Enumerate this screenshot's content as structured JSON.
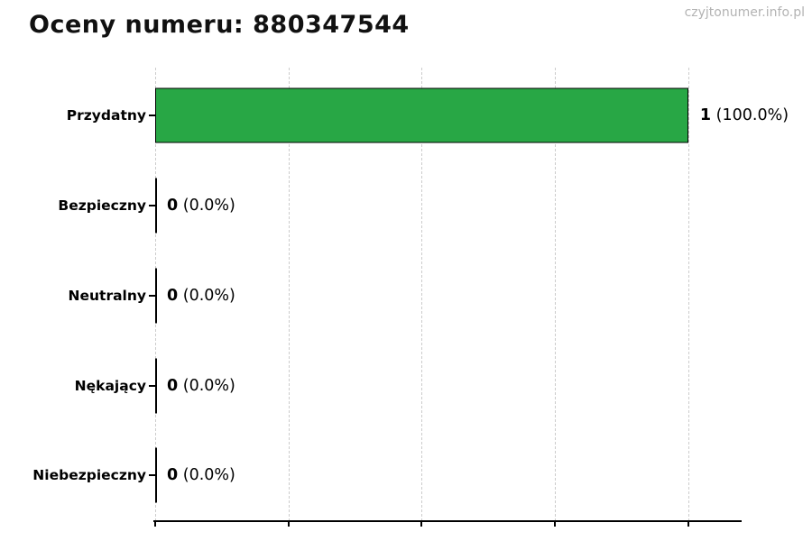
{
  "title": "Oceny numeru: 880347544",
  "watermark": "czyjtonumer.info.pl",
  "chart_data": {
    "type": "bar",
    "orientation": "horizontal",
    "title": "Oceny numeru: 880347544",
    "categories": [
      "Przydatny",
      "Bezpieczny",
      "Neutralny",
      "Nękający",
      "Niebezpieczny"
    ],
    "values": [
      1,
      0,
      0,
      0,
      0
    ],
    "percent_labels": [
      "(100.0%)",
      "(0.0%)",
      "(0.0%)",
      "(0.0%)",
      "(0.0%)"
    ],
    "value_labels": [
      "1 (100.0%)",
      "0 (0.0%)",
      "0 (0.0%)",
      "0 (0.0%)",
      "0 (0.0%)"
    ],
    "xlabel": "",
    "ylabel": "",
    "xlim": [
      0,
      1.1
    ],
    "xticks": [
      0,
      0.25,
      0.5,
      0.75,
      1.0
    ],
    "grid": "vertical-dashed",
    "legend": "none",
    "bar_color": "#28a745",
    "bar_edge_color": "#000000",
    "grid_color": "#cccccc"
  }
}
